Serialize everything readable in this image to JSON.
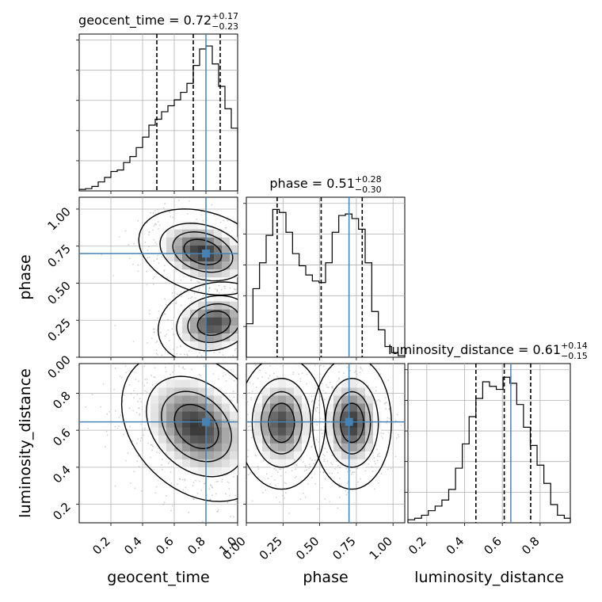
{
  "chart_data": {
    "type": "corner",
    "parameters": [
      "geocent_time",
      "phase",
      "luminosity_distance"
    ],
    "truth_color": "#4682b4",
    "grid": true,
    "titles": [
      {
        "param": "geocent_time",
        "value": "0.72",
        "plus": "+0.17",
        "minus": "−0.23"
      },
      {
        "param": "phase",
        "value": "0.51",
        "plus": "+0.28",
        "minus": "−0.30"
      },
      {
        "param": "luminosity_distance",
        "value": "0.61",
        "plus": "+0.14",
        "minus": "−0.15"
      }
    ],
    "xlabels": [
      "geocent_time",
      "phase",
      "luminosity_distance"
    ],
    "ylabels": [
      "phase",
      "luminosity_distance"
    ],
    "axes": {
      "geocent_time": {
        "range": [
          0.0,
          1.0
        ],
        "ticks": [
          0.2,
          0.4,
          0.6,
          0.8,
          1.0
        ],
        "tick_labels": [
          "0.2",
          "0.4",
          "0.6",
          "0.8",
          "1.0"
        ]
      },
      "phase": {
        "range": [
          0.0,
          1.08
        ],
        "ticks": [
          0.0,
          0.25,
          0.5,
          0.75,
          1.0
        ],
        "tick_labels": [
          "0.00",
          "0.25",
          "0.50",
          "0.75",
          "1.00"
        ]
      },
      "luminosity_distance": {
        "range": [
          0.1,
          0.96
        ],
        "ticks": [
          0.2,
          0.4,
          0.6,
          0.8
        ],
        "tick_labels": [
          "0.2",
          "0.4",
          "0.6",
          "0.8"
        ]
      }
    },
    "truths": {
      "geocent_time": 0.8,
      "phase": 0.7,
      "luminosity_distance": 0.645
    },
    "quantiles": {
      "geocent_time": [
        0.49,
        0.72,
        0.89
      ],
      "phase": [
        0.21,
        0.51,
        0.79
      ],
      "luminosity_distance": [
        0.46,
        0.61,
        0.75
      ]
    },
    "histograms": {
      "geocent_time": {
        "edges": [
          0.0,
          0.04,
          0.08,
          0.12,
          0.16,
          0.2,
          0.24,
          0.28,
          0.32,
          0.36,
          0.4,
          0.44,
          0.48,
          0.52,
          0.56,
          0.6,
          0.64,
          0.68,
          0.72,
          0.76,
          0.8,
          0.84,
          0.88,
          0.92,
          0.96,
          1.0
        ],
        "counts": [
          0.01,
          0.015,
          0.03,
          0.06,
          0.09,
          0.13,
          0.14,
          0.19,
          0.23,
          0.29,
          0.36,
          0.44,
          0.48,
          0.53,
          0.57,
          0.61,
          0.66,
          0.72,
          0.84,
          0.95,
          0.97,
          0.85,
          0.7,
          0.55,
          0.42
        ],
        "ylim": [
          0,
          1.05
        ]
      },
      "phase": {
        "edges": [
          0.0,
          0.045,
          0.09,
          0.135,
          0.18,
          0.225,
          0.27,
          0.315,
          0.36,
          0.405,
          0.45,
          0.495,
          0.54,
          0.585,
          0.63,
          0.675,
          0.72,
          0.765,
          0.81,
          0.855,
          0.9,
          0.945,
          0.99,
          1.035,
          1.08
        ],
        "counts": [
          0.22,
          0.45,
          0.62,
          0.8,
          0.97,
          0.95,
          0.82,
          0.68,
          0.6,
          0.54,
          0.5,
          0.49,
          0.62,
          0.82,
          0.93,
          0.94,
          0.91,
          0.84,
          0.62,
          0.3,
          0.18,
          0.07,
          0.03,
          0.01
        ],
        "ylim": [
          0,
          1.05
        ]
      },
      "luminosity_distance": {
        "edges": [
          0.1,
          0.136,
          0.172,
          0.208,
          0.244,
          0.28,
          0.316,
          0.352,
          0.388,
          0.424,
          0.46,
          0.496,
          0.532,
          0.568,
          0.604,
          0.64,
          0.676,
          0.712,
          0.748,
          0.784,
          0.82,
          0.856,
          0.892,
          0.928,
          0.96
        ],
        "counts": [
          0.02,
          0.03,
          0.05,
          0.08,
          0.11,
          0.15,
          0.22,
          0.36,
          0.52,
          0.7,
          0.82,
          0.93,
          0.9,
          0.88,
          0.96,
          0.92,
          0.78,
          0.63,
          0.51,
          0.38,
          0.26,
          0.12,
          0.05,
          0.03
        ],
        "ylim": [
          0,
          1.05
        ]
      }
    },
    "contour_panels": [
      {
        "x": "geocent_time",
        "y": "phase",
        "modes": [
          {
            "cx": 0.78,
            "cy": 0.71,
            "sx": 0.14,
            "sy": 0.09,
            "rot": -0.35,
            "w": 0.52
          },
          {
            "cx": 0.85,
            "cy": 0.23,
            "sx": 0.12,
            "sy": 0.09,
            "rot": 0.3,
            "w": 0.48
          }
        ]
      },
      {
        "x": "geocent_time",
        "y": "luminosity_distance",
        "modes": [
          {
            "cx": 0.74,
            "cy": 0.62,
            "sx": 0.17,
            "sy": 0.12,
            "rot": -0.55,
            "w": 1.0
          }
        ]
      },
      {
        "x": "phase",
        "y": "luminosity_distance",
        "modes": [
          {
            "cx": 0.24,
            "cy": 0.64,
            "sx": 0.1,
            "sy": 0.12,
            "rot": 0.0,
            "w": 0.48
          },
          {
            "cx": 0.72,
            "cy": 0.64,
            "sx": 0.09,
            "sy": 0.12,
            "rot": 0.0,
            "w": 0.52
          }
        ]
      }
    ]
  }
}
